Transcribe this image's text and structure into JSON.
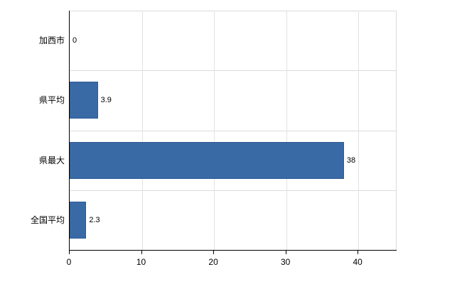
{
  "chart_data": {
    "type": "bar",
    "orientation": "horizontal",
    "title": "",
    "xlabel": "",
    "ylabel": "",
    "categories": [
      "加西市",
      "県平均",
      "県最大",
      "全国平均"
    ],
    "values": [
      0,
      3.9,
      38,
      2.3
    ],
    "value_labels": [
      "0",
      "3.9",
      "38",
      "2.3"
    ],
    "x_ticks": [
      0,
      10,
      20,
      30,
      40
    ],
    "xlim": [
      0,
      45.3
    ],
    "grid": "light gray vertical gridlines at ticks and horizontal lines at category boundaries",
    "legend": "none",
    "colors": {
      "bar_fill": "#3a6aa6",
      "bar_border": "#2e5a94",
      "axis": "#000000",
      "gridline": "#dcdcdc",
      "background": "#ffffff"
    }
  }
}
